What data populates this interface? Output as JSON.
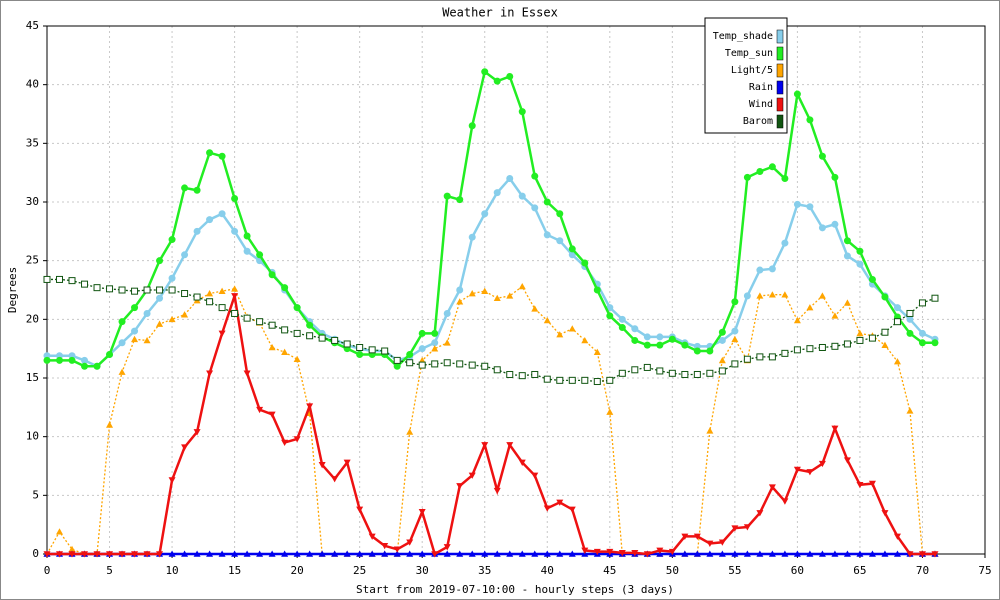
{
  "chart_data": {
    "type": "line",
    "title": "Weather in Essex",
    "xlabel": "Start from 2019-07-10:00 - hourly steps (3 days)",
    "ylabel": "Degrees",
    "x": [
      0,
      1,
      2,
      3,
      4,
      5,
      6,
      7,
      8,
      9,
      10,
      11,
      12,
      13,
      14,
      15,
      16,
      17,
      18,
      19,
      20,
      21,
      22,
      23,
      24,
      25,
      26,
      27,
      28,
      29,
      30,
      31,
      32,
      33,
      34,
      35,
      36,
      37,
      38,
      39,
      40,
      41,
      42,
      43,
      44,
      45,
      46,
      47,
      48,
      49,
      50,
      51,
      52,
      53,
      54,
      55,
      56,
      57,
      58,
      59,
      60,
      61,
      62,
      63,
      64,
      65,
      66,
      67,
      68,
      69,
      70,
      71
    ],
    "xlim": [
      0,
      75
    ],
    "xticks": [
      0,
      5,
      10,
      15,
      20,
      25,
      30,
      35,
      40,
      45,
      50,
      55,
      60,
      65,
      70,
      75
    ],
    "ylim": [
      0,
      45
    ],
    "yticks": [
      0,
      5,
      10,
      15,
      20,
      25,
      30,
      35,
      40,
      45
    ],
    "grid": true,
    "legend": "upper right",
    "series": [
      {
        "name": "Temp_shade",
        "color": "#87ceeb",
        "marker": "circle",
        "dash": false,
        "values": [
          16.9,
          16.9,
          16.9,
          16.5,
          16.0,
          17.0,
          18.0,
          19.0,
          20.5,
          21.8,
          23.5,
          25.5,
          27.5,
          28.5,
          29.0,
          27.5,
          25.8,
          25.0,
          24.0,
          22.5,
          21.0,
          19.8,
          18.8,
          18.3,
          17.8,
          17.5,
          17.3,
          17.3,
          16.5,
          16.8,
          17.5,
          18.0,
          20.5,
          22.5,
          27.0,
          29.0,
          30.8,
          32.0,
          30.5,
          29.5,
          27.2,
          26.7,
          25.5,
          24.5,
          23.0,
          21.0,
          20.0,
          19.2,
          18.5,
          18.5,
          18.5,
          18.0,
          17.7,
          17.7,
          18.2,
          19.0,
          22.0,
          24.2,
          24.3,
          26.5,
          29.8,
          29.6,
          27.8,
          28.1,
          25.4,
          24.7,
          23.0,
          22.0,
          21.0,
          20.0,
          18.8,
          18.3
        ]
      },
      {
        "name": "Temp_sun",
        "color": "#22ee22",
        "marker": "circle",
        "dash": false,
        "values": [
          16.5,
          16.5,
          16.5,
          16.0,
          16.0,
          17.0,
          19.8,
          21.0,
          22.5,
          25.0,
          26.8,
          31.2,
          31.0,
          34.2,
          33.9,
          30.3,
          27.1,
          25.5,
          23.8,
          22.7,
          21.0,
          19.5,
          18.5,
          18.0,
          17.5,
          17.0,
          17.0,
          17.0,
          16.0,
          17.0,
          18.8,
          18.8,
          30.5,
          30.2,
          36.5,
          41.1,
          40.3,
          40.7,
          37.7,
          32.2,
          30.0,
          29.0,
          26.0,
          24.8,
          22.5,
          20.3,
          19.3,
          18.2,
          17.8,
          17.8,
          18.3,
          17.8,
          17.3,
          17.3,
          18.9,
          21.5,
          32.1,
          32.6,
          33.0,
          32.0,
          39.2,
          37.0,
          33.9,
          32.1,
          26.7,
          25.8,
          23.4,
          21.9,
          20.2,
          18.8,
          18.0,
          18.0
        ]
      },
      {
        "name": "Light/5",
        "color": "#ffa500",
        "marker": "triangle",
        "dash": true,
        "values": [
          0,
          1.9,
          0.4,
          0,
          0,
          11,
          15.5,
          18.3,
          18.2,
          19.6,
          20.0,
          20.4,
          21.6,
          22.2,
          22.4,
          22.6,
          20.2,
          19.7,
          17.6,
          17.2,
          16.6,
          12.0,
          0,
          0,
          0,
          0,
          0,
          0,
          0,
          10.4,
          16.5,
          17.5,
          18.0,
          21.5,
          22.2,
          22.4,
          21.8,
          22.0,
          22.8,
          20.9,
          19.9,
          18.7,
          19.2,
          18.2,
          17.2,
          12.1,
          0,
          0,
          0,
          0,
          0,
          0,
          0,
          10.5,
          16.5,
          18.3,
          16.5,
          22.0,
          22.1,
          22.1,
          19.9,
          21.0,
          22.0,
          20.3,
          21.4,
          18.8,
          18.6,
          17.8,
          16.4,
          12.2,
          0,
          0
        ]
      },
      {
        "name": "Rain",
        "color": "#0000ee",
        "marker": "triangle",
        "dash": false,
        "values": [
          0,
          0,
          0,
          0,
          0,
          0,
          0,
          0,
          0,
          0,
          0,
          0,
          0,
          0,
          0,
          0,
          0,
          0,
          0,
          0,
          0,
          0,
          0,
          0,
          0,
          0,
          0,
          0,
          0,
          0,
          0,
          0,
          0,
          0,
          0,
          0,
          0,
          0,
          0,
          0,
          0,
          0,
          0,
          0,
          0,
          0,
          0,
          0,
          0,
          0,
          0,
          0,
          0,
          0,
          0,
          0,
          0,
          0,
          0,
          0,
          0,
          0,
          0,
          0,
          0,
          0,
          0,
          0,
          0,
          0,
          0,
          0
        ]
      },
      {
        "name": "Wind",
        "color": "#ee1111",
        "marker": "down-triangle",
        "dash": false,
        "values": [
          0,
          0,
          0,
          0,
          0,
          0,
          0,
          0,
          0,
          0,
          6.3,
          9.1,
          10.4,
          15.4,
          18.8,
          22.0,
          15.4,
          12.3,
          11.9,
          9.5,
          9.8,
          12.6,
          7.6,
          6.4,
          7.8,
          3.8,
          1.5,
          0.7,
          0.4,
          1.0,
          3.6,
          0,
          0.6,
          5.8,
          6.7,
          9.3,
          5.4,
          9.3,
          7.8,
          6.7,
          3.9,
          4.4,
          3.8,
          0.3,
          0.2,
          0.2,
          0.1,
          0.1,
          0,
          0.3,
          0.2,
          1.5,
          1.5,
          0.9,
          1.0,
          2.2,
          2.3,
          3.5,
          5.7,
          4.5,
          7.2,
          7.0,
          7.7,
          10.7,
          8.0,
          5.9,
          6.0,
          3.5,
          1.5,
          0,
          0,
          0
        ]
      },
      {
        "name": "Barom",
        "color": "#115511",
        "marker": "square",
        "dash": true,
        "values": [
          23.4,
          23.4,
          23.3,
          23.0,
          22.7,
          22.6,
          22.5,
          22.4,
          22.5,
          22.5,
          22.5,
          22.2,
          21.9,
          21.5,
          21.0,
          20.5,
          20.1,
          19.8,
          19.5,
          19.1,
          18.8,
          18.6,
          18.4,
          18.2,
          17.9,
          17.6,
          17.4,
          17.3,
          16.5,
          16.3,
          16.1,
          16.2,
          16.3,
          16.2,
          16.1,
          16.0,
          15.7,
          15.3,
          15.2,
          15.3,
          14.9,
          14.8,
          14.8,
          14.8,
          14.7,
          14.8,
          15.4,
          15.7,
          15.9,
          15.6,
          15.4,
          15.3,
          15.3,
          15.4,
          15.6,
          16.2,
          16.6,
          16.8,
          16.8,
          17.1,
          17.4,
          17.5,
          17.6,
          17.7,
          17.9,
          18.2,
          18.4,
          18.9,
          19.8,
          20.5,
          21.4,
          21.8
        ]
      }
    ]
  }
}
